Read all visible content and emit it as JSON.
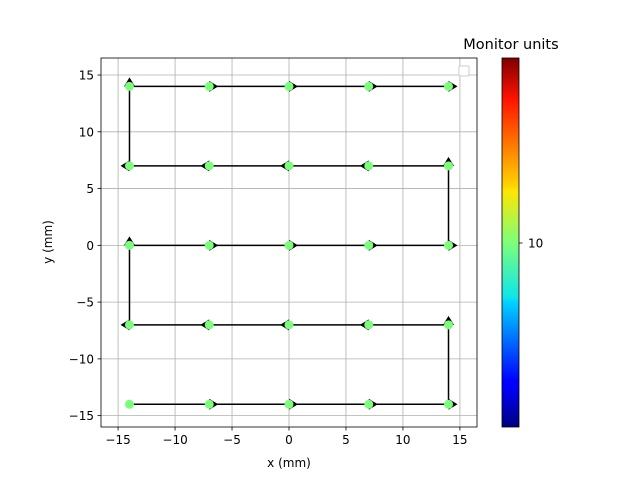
{
  "chart_data": {
    "type": "scatter",
    "xlabel": "x (mm)",
    "ylabel": "y (mm)",
    "xlim": [
      -16.5,
      16.5
    ],
    "ylim": [
      -16,
      16.5
    ],
    "xticks": [
      -15,
      -10,
      -5,
      0,
      5,
      10,
      15
    ],
    "yticks": [
      -15,
      -10,
      -5,
      0,
      5,
      10,
      15
    ],
    "tick_labels": {
      "x": [
        "−15",
        "−10",
        "−5",
        "0",
        "5",
        "10",
        "15"
      ],
      "y": [
        "−15",
        "−10",
        "−5",
        "0",
        "5",
        "10",
        "15"
      ]
    },
    "grid": true,
    "legend": {
      "placement": "top-right",
      "entries": []
    },
    "point_color": "#7cfc7c",
    "arrow_color": "#000000",
    "points": [
      [
        -14,
        -14
      ],
      [
        -7,
        -14
      ],
      [
        0,
        -14
      ],
      [
        7,
        -14
      ],
      [
        14,
        -14
      ],
      [
        14,
        -7
      ],
      [
        7,
        -7
      ],
      [
        0,
        -7
      ],
      [
        -7,
        -7
      ],
      [
        -14,
        -7
      ],
      [
        -14,
        0
      ],
      [
        -7,
        0
      ],
      [
        0,
        0
      ],
      [
        7,
        0
      ],
      [
        14,
        0
      ],
      [
        14,
        7
      ],
      [
        7,
        7
      ],
      [
        0,
        7
      ],
      [
        -7,
        7
      ],
      [
        -14,
        7
      ],
      [
        -14,
        14
      ],
      [
        -7,
        14
      ],
      [
        0,
        14
      ],
      [
        7,
        14
      ],
      [
        14,
        14
      ]
    ],
    "colorbar": {
      "title": "Monitor units",
      "colormap": "jet",
      "tick_labels": [
        "10"
      ],
      "tick_fraction": 0.5
    }
  }
}
